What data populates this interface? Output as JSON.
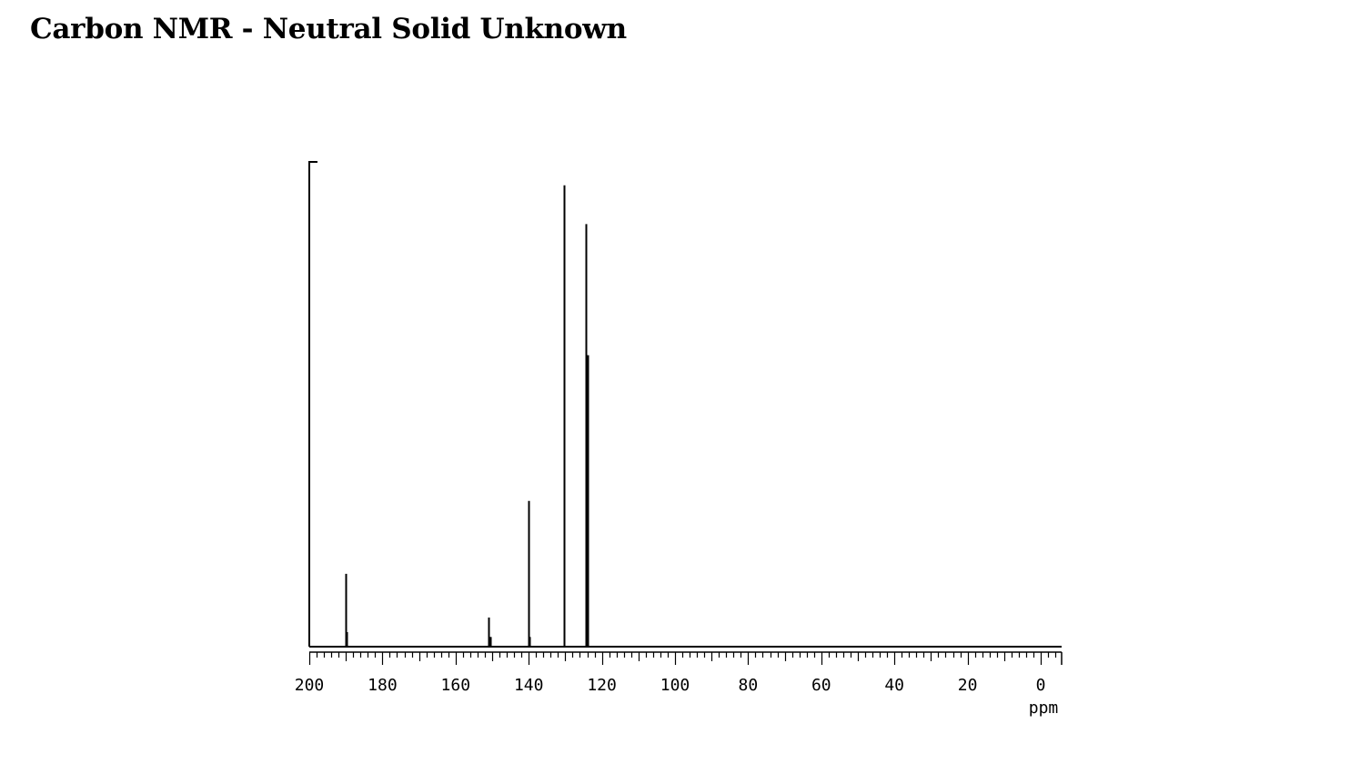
{
  "page": {
    "title": "Carbon NMR - Neutral Solid Unknown"
  },
  "chart_data": {
    "type": "line",
    "title": "Carbon NMR - Neutral Solid Unknown",
    "xlabel": "ppm",
    "ylabel": "",
    "x_reversed": true,
    "xlim": [
      200,
      -5
    ],
    "ylim": [
      0,
      1
    ],
    "x_ticks": [
      200,
      180,
      160,
      140,
      120,
      100,
      80,
      60,
      40,
      20,
      0
    ],
    "x_tick_labels": [
      "200",
      "180",
      "160",
      "140",
      "120",
      "100",
      "80",
      "60",
      "40",
      "20",
      "0"
    ],
    "grid": false,
    "legend": "none",
    "line_color": "#000000",
    "peaks": [
      {
        "ppm": 190.1,
        "intensity": 0.15
      },
      {
        "ppm": 189.8,
        "intensity": 0.03
      },
      {
        "ppm": 150.9,
        "intensity": 0.06
      },
      {
        "ppm": 150.6,
        "intensity": 0.02
      },
      {
        "ppm": 140.1,
        "intensity": 0.3
      },
      {
        "ppm": 139.8,
        "intensity": 0.02
      },
      {
        "ppm": 130.3,
        "intensity": 0.95
      },
      {
        "ppm": 124.3,
        "intensity": 0.87
      },
      {
        "ppm": 124.0,
        "intensity": 0.6
      },
      {
        "ppm": 123.8,
        "intensity": 0.6
      }
    ]
  }
}
